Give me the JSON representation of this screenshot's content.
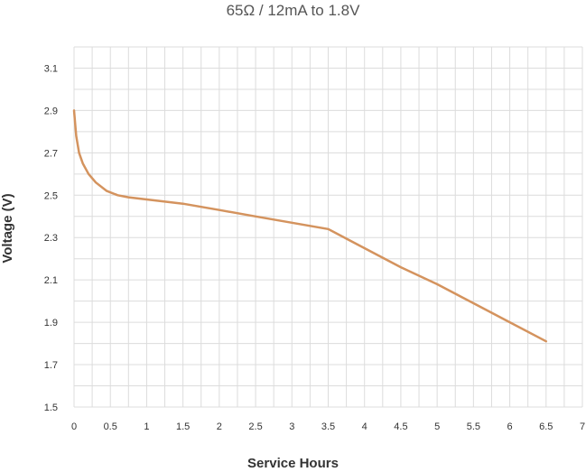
{
  "chart_data": {
    "type": "line",
    "title": "65Ω / 12mA to 1.8V",
    "xlabel": "Service Hours",
    "ylabel": "Voltage (V)",
    "xlim": [
      0,
      7
    ],
    "ylim": [
      1.5,
      3.2
    ],
    "grid": true,
    "legend": "none",
    "x_ticks": [
      "0",
      "0.5",
      "1",
      "1.5",
      "2",
      "2.5",
      "3",
      "3.5",
      "4",
      "4.5",
      "5",
      "5.5",
      "6",
      "6.5",
      "7"
    ],
    "y_ticks": [
      "1.5",
      "1.7",
      "1.9",
      "2.1",
      "2.3",
      "2.5",
      "2.7",
      "2.9",
      "3.1"
    ],
    "series": [
      {
        "color": "#d4935e",
        "x": [
          0,
          0.03,
          0.07,
          0.12,
          0.2,
          0.3,
          0.45,
          0.6,
          0.75,
          1.0,
          1.5,
          2.0,
          2.5,
          3.0,
          3.5,
          4.0,
          4.5,
          5.0,
          5.5,
          6.0,
          6.5
        ],
        "y": [
          2.9,
          2.78,
          2.7,
          2.65,
          2.6,
          2.56,
          2.52,
          2.5,
          2.49,
          2.48,
          2.46,
          2.43,
          2.4,
          2.37,
          2.34,
          2.25,
          2.16,
          2.08,
          1.99,
          1.9,
          1.81
        ]
      }
    ]
  }
}
